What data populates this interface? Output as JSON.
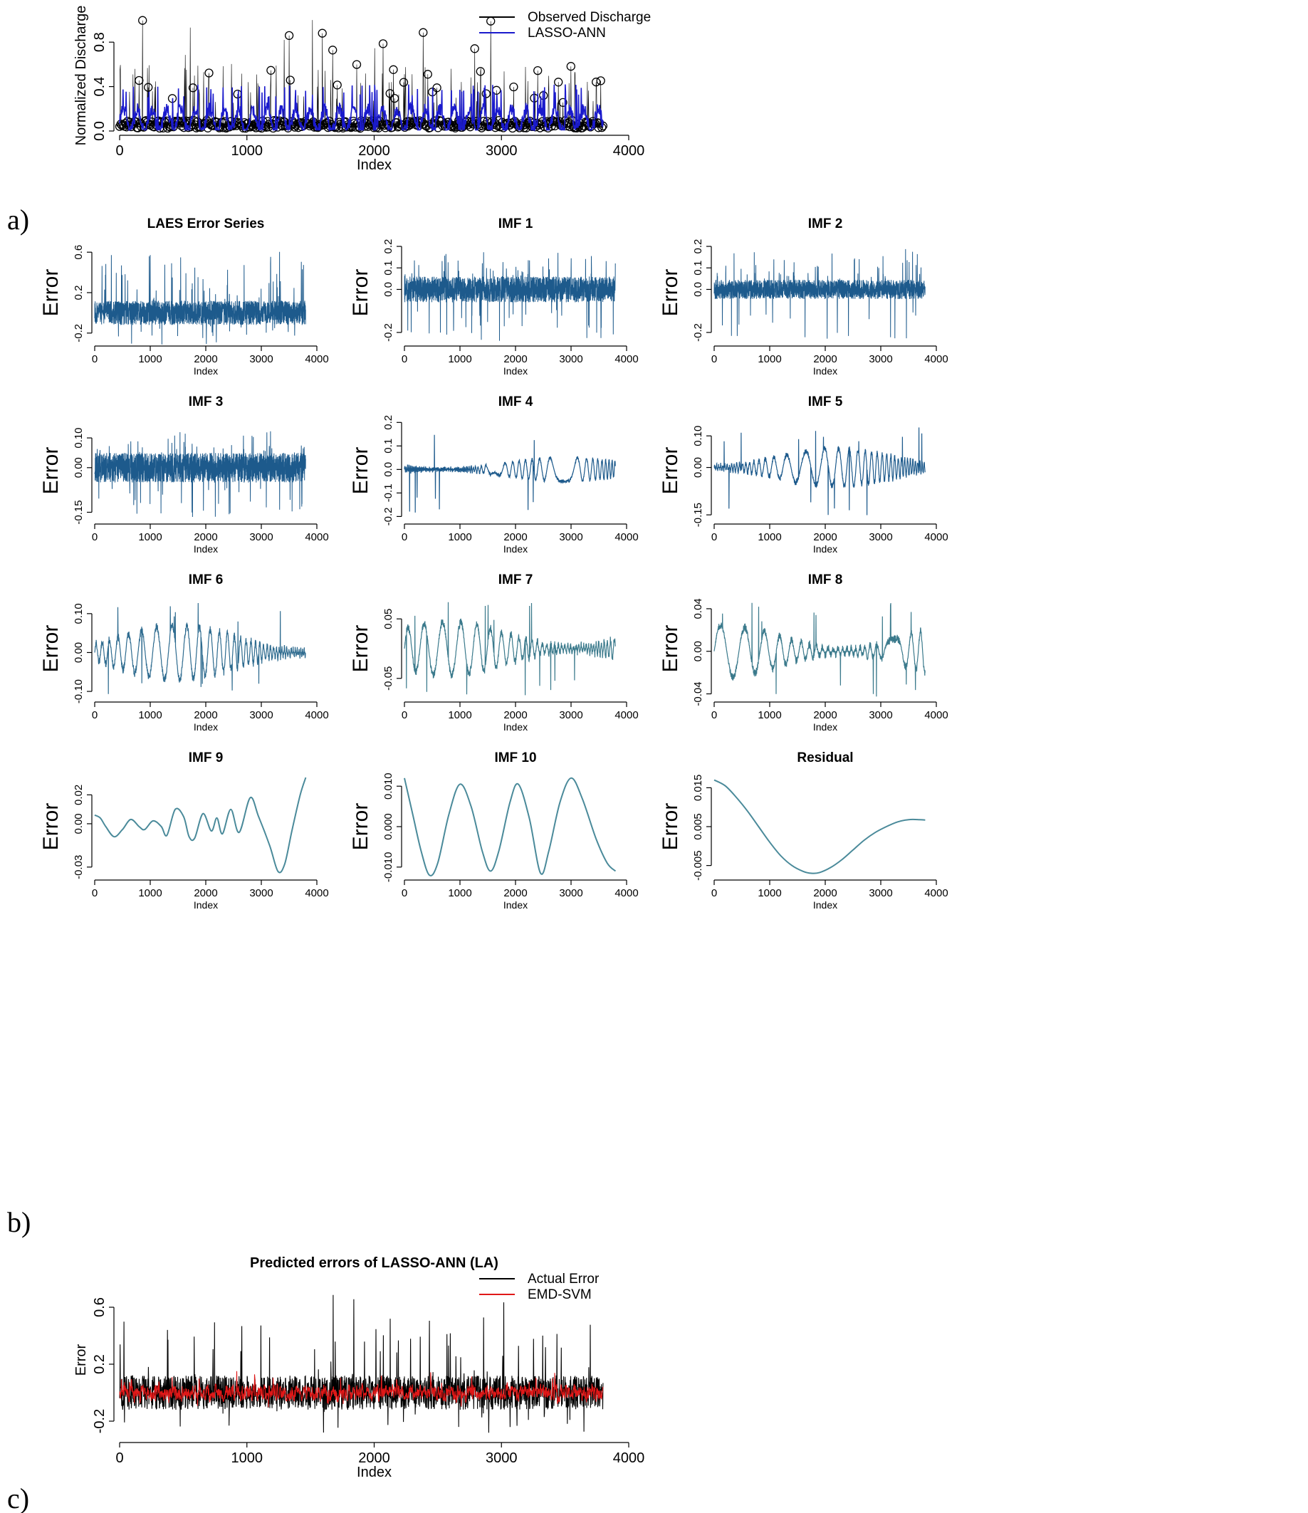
{
  "panel_labels": [
    "a)",
    "b)",
    "c)"
  ],
  "chart_data": [
    {
      "id": "a",
      "type": "scatter",
      "title": "",
      "xlabel": "Index",
      "ylabel": "Normalized Discharge",
      "xlim": [
        0,
        4000
      ],
      "ylim": [
        0,
        1
      ],
      "xticks": [
        0,
        1000,
        2000,
        3000,
        4000
      ],
      "yticks": [
        0.0,
        0.4,
        0.8
      ],
      "ytick_labels": [
        "0.0",
        "0.4",
        "0.8"
      ],
      "legend_position": "top-right",
      "series": [
        {
          "name": "Observed Discharge",
          "kind": "points-and-line",
          "color": "#000000",
          "n": 3800,
          "mean": 0.12,
          "peak": 1.0
        },
        {
          "name": "LASSO-ANN",
          "kind": "line",
          "color": "#1a1acc",
          "n": 3800,
          "mean": 0.12,
          "peak": 0.42
        }
      ]
    },
    {
      "id": "b1",
      "type": "line",
      "title": "LAES Error Series",
      "xlabel": "Index",
      "ylabel": "Error",
      "xlim": [
        0,
        4000
      ],
      "ylim": [
        -0.3,
        0.7
      ],
      "xticks": [
        0,
        1000,
        2000,
        3000,
        4000
      ],
      "yticks": [
        -0.2,
        0.2,
        0.6
      ],
      "ytick_labels": [
        "-0.2",
        "0.2",
        "0.6"
      ],
      "series": [
        {
          "kind": "noise",
          "n": 3800,
          "amplitude": 0.12,
          "spike_max": 0.72,
          "spike_min": -0.33,
          "color": "#1d5a8c"
        }
      ]
    },
    {
      "id": "b2",
      "type": "line",
      "title": "IMF  1",
      "xlabel": "Index",
      "ylabel": "Error",
      "xlim": [
        0,
        4000
      ],
      "ylim": [
        -0.25,
        0.22
      ],
      "xticks": [
        0,
        1000,
        2000,
        3000,
        4000
      ],
      "yticks": [
        -0.2,
        0.0,
        0.1,
        0.2
      ],
      "ytick_labels": [
        "-0.2",
        "0.0",
        "0.1",
        "0.2"
      ],
      "series": [
        {
          "kind": "noise",
          "n": 3800,
          "amplitude": 0.06,
          "spike_max": 0.2,
          "spike_min": -0.24,
          "color": "#1d5a8c"
        }
      ]
    },
    {
      "id": "b3",
      "type": "line",
      "title": "IMF  2",
      "xlabel": "Index",
      "ylabel": "Error",
      "xlim": [
        0,
        4000
      ],
      "ylim": [
        -0.25,
        0.22
      ],
      "xticks": [
        0,
        1000,
        2000,
        3000,
        4000
      ],
      "yticks": [
        -0.2,
        0.0,
        0.1,
        0.2
      ],
      "ytick_labels": [
        "-0.2",
        "0.0",
        "0.1",
        "0.2"
      ],
      "series": [
        {
          "kind": "noise",
          "n": 3800,
          "amplitude": 0.045,
          "spike_max": 0.2,
          "spike_min": -0.23,
          "color": "#1d5a8c"
        }
      ]
    },
    {
      "id": "b4",
      "type": "line",
      "title": "IMF  3",
      "xlabel": "Index",
      "ylabel": "Error",
      "xlim": [
        0,
        4000
      ],
      "ylim": [
        -0.18,
        0.16
      ],
      "xticks": [
        0,
        1000,
        2000,
        3000,
        4000
      ],
      "yticks": [
        -0.15,
        0.0,
        0.1
      ],
      "ytick_labels": [
        "-0.15",
        "0.00",
        "0.10"
      ],
      "series": [
        {
          "kind": "noise",
          "n": 3800,
          "amplitude": 0.05,
          "spike_max": 0.15,
          "spike_min": -0.17,
          "color": "#1d5a8c"
        }
      ]
    },
    {
      "id": "b5",
      "type": "line",
      "title": "IMF  4",
      "xlabel": "Index",
      "ylabel": "Error",
      "xlim": [
        0,
        4000
      ],
      "ylim": [
        -0.22,
        0.21
      ],
      "xticks": [
        0,
        1000,
        2000,
        3000,
        4000
      ],
      "yticks": [
        -0.2,
        -0.1,
        0.0,
        0.1,
        0.2
      ],
      "ytick_labels": [
        "-0.2",
        "-0.1",
        "0.0",
        "0.1",
        "0.2"
      ],
      "series": [
        {
          "kind": "oscillation",
          "n": 3800,
          "amplitude": 0.05,
          "period": 45,
          "spike_max": 0.19,
          "spike_min": -0.19,
          "color": "#1d5a8c"
        }
      ]
    },
    {
      "id": "b6",
      "type": "line",
      "title": "IMF  5",
      "xlabel": "Index",
      "ylabel": "Error",
      "xlim": [
        0,
        4000
      ],
      "ylim": [
        -0.17,
        0.15
      ],
      "xticks": [
        0,
        1000,
        2000,
        3000,
        4000
      ],
      "yticks": [
        -0.15,
        0.0,
        0.1
      ],
      "ytick_labels": [
        "-0.15",
        "0.00",
        "0.10"
      ],
      "series": [
        {
          "kind": "oscillation",
          "n": 3800,
          "amplitude": 0.06,
          "period": 90,
          "spike_max": 0.13,
          "spike_min": -0.16,
          "color": "#1d5a8c"
        }
      ]
    },
    {
      "id": "b7",
      "type": "line",
      "title": "IMF  6",
      "xlabel": "Index",
      "ylabel": "Error",
      "xlim": [
        0,
        4000
      ],
      "ylim": [
        -0.12,
        0.14
      ],
      "xticks": [
        0,
        1000,
        2000,
        3000,
        4000
      ],
      "yticks": [
        -0.1,
        0.0,
        0.1
      ],
      "ytick_labels": [
        "-0.10",
        "0.00",
        "0.10"
      ],
      "series": [
        {
          "kind": "oscillation",
          "n": 3800,
          "amplitude": 0.07,
          "period": 170,
          "spike_max": 0.13,
          "spike_min": -0.12,
          "color": "#2e6b8f"
        }
      ]
    },
    {
      "id": "b8",
      "type": "line",
      "title": "IMF  7",
      "xlabel": "Index",
      "ylabel": "Error",
      "xlim": [
        0,
        4000
      ],
      "ylim": [
        -0.085,
        0.085
      ],
      "xticks": [
        0,
        1000,
        2000,
        3000,
        4000
      ],
      "yticks": [
        -0.05,
        0.05
      ],
      "ytick_labels": [
        "-0.05",
        "0.05"
      ],
      "series": [
        {
          "kind": "oscillation",
          "n": 3800,
          "amplitude": 0.045,
          "period": 260,
          "spike_max": 0.08,
          "spike_min": -0.08,
          "color": "#3b7a8c"
        }
      ]
    },
    {
      "id": "b9",
      "type": "line",
      "title": "IMF  8",
      "xlabel": "Index",
      "ylabel": "Error",
      "xlim": [
        0,
        4000
      ],
      "ylim": [
        -0.045,
        0.05
      ],
      "xticks": [
        0,
        1000,
        2000,
        3000,
        4000
      ],
      "yticks": [
        -0.04,
        0.0,
        0.04
      ],
      "ytick_labels": [
        "-0.04",
        "0.00",
        "0.04"
      ],
      "series": [
        {
          "kind": "oscillation",
          "n": 3800,
          "amplitude": 0.025,
          "period": 380,
          "spike_max": 0.047,
          "spike_min": -0.043,
          "color": "#3b7a8c"
        }
      ]
    },
    {
      "id": "b10",
      "type": "line",
      "title": "IMF  9",
      "xlabel": "Index",
      "ylabel": "Error",
      "xlim": [
        0,
        4000
      ],
      "ylim": [
        -0.037,
        0.033
      ],
      "xticks": [
        0,
        1000,
        2000,
        3000,
        4000
      ],
      "yticks": [
        -0.03,
        0.0,
        0.02
      ],
      "ytick_labels": [
        "-0.03",
        "0.00",
        "0.02"
      ],
      "series": [
        {
          "kind": "points",
          "color": "#4a8a9a",
          "x": [
            0,
            100,
            200,
            350,
            500,
            650,
            800,
            900,
            1050,
            1200,
            1300,
            1450,
            1600,
            1700,
            1800,
            1950,
            2100,
            2200,
            2300,
            2450,
            2600,
            2800,
            2950,
            3150,
            3300,
            3420,
            3550,
            3700,
            3800
          ],
          "y": [
            0.006,
            0.004,
            -0.002,
            -0.009,
            -0.004,
            0.003,
            -0.002,
            -0.004,
            0.002,
            -0.002,
            -0.008,
            0.01,
            0.005,
            -0.009,
            -0.01,
            0.007,
            -0.005,
            0.004,
            -0.007,
            0.01,
            -0.006,
            0.018,
            0.005,
            -0.015,
            -0.033,
            -0.028,
            -0.005,
            0.02,
            0.032
          ]
        }
      ]
    },
    {
      "id": "b11",
      "type": "line",
      "title": "IMF  10",
      "xlabel": "Index",
      "ylabel": "Error",
      "xlim": [
        0,
        4000
      ],
      "ylim": [
        -0.0125,
        0.0125
      ],
      "xticks": [
        0,
        1000,
        2000,
        3000,
        4000
      ],
      "yticks": [
        -0.01,
        0.0,
        0.01
      ],
      "ytick_labels": [
        "-0.010",
        "0.000",
        "0.010"
      ],
      "series": [
        {
          "kind": "points",
          "color": "#4a8a9a",
          "x": [
            0,
            150,
            300,
            450,
            600,
            800,
            1000,
            1200,
            1400,
            1550,
            1700,
            1900,
            2050,
            2250,
            2450,
            2600,
            2800,
            3000,
            3200,
            3450,
            3650,
            3800
          ],
          "y": [
            0.012,
            0.003,
            -0.006,
            -0.012,
            -0.009,
            0.003,
            0.0105,
            0.005,
            -0.006,
            -0.011,
            -0.006,
            0.006,
            0.0105,
            0.002,
            -0.0115,
            -0.006,
            0.006,
            0.012,
            0.007,
            -0.003,
            -0.009,
            -0.011
          ]
        }
      ]
    },
    {
      "id": "b12",
      "type": "line",
      "title": "Residual",
      "xlabel": "Index",
      "ylabel": "Error",
      "xlim": [
        0,
        4000
      ],
      "ylim": [
        -0.008,
        0.018
      ],
      "xticks": [
        0,
        1000,
        2000,
        3000,
        4000
      ],
      "yticks": [
        -0.005,
        0.005,
        0.015
      ],
      "ytick_labels": [
        "-0.005",
        "0.005",
        "0.015"
      ],
      "series": [
        {
          "kind": "points",
          "color": "#4a8a9a",
          "x": [
            0,
            200,
            400,
            600,
            800,
            1000,
            1200,
            1400,
            1600,
            1750,
            1900,
            2100,
            2300,
            2500,
            2700,
            2900,
            3100,
            3300,
            3500,
            3700,
            3800
          ],
          "y": [
            0.017,
            0.0155,
            0.0125,
            0.009,
            0.005,
            0.001,
            -0.0025,
            -0.005,
            -0.0065,
            -0.007,
            -0.0068,
            -0.0055,
            -0.0035,
            -0.001,
            0.0015,
            0.0035,
            0.005,
            0.0062,
            0.0068,
            0.0068,
            0.0067
          ]
        }
      ]
    },
    {
      "id": "c",
      "type": "line",
      "title": "Predicted errors of LASSO-ANN (LA)",
      "xlabel": "Index",
      "ylabel": "Error",
      "xlim": [
        0,
        4000
      ],
      "ylim": [
        -0.32,
        0.78
      ],
      "xticks": [
        0,
        1000,
        2000,
        3000,
        4000
      ],
      "yticks": [
        -0.2,
        0.2,
        0.6
      ],
      "ytick_labels": [
        "-0.2",
        "0.2",
        "0.6"
      ],
      "legend_position": "top-right",
      "series": [
        {
          "name": "Actual Error",
          "kind": "noise",
          "color": "#000000",
          "n": 3800,
          "amplitude": 0.12,
          "spike_max": 0.72,
          "spike_min": -0.3
        },
        {
          "name": "EMD-SVM",
          "kind": "smooth-noise",
          "color": "#e01818",
          "n": 3800,
          "amplitude": 0.09,
          "spike_max": 0.36,
          "spike_min": -0.2
        }
      ]
    }
  ]
}
